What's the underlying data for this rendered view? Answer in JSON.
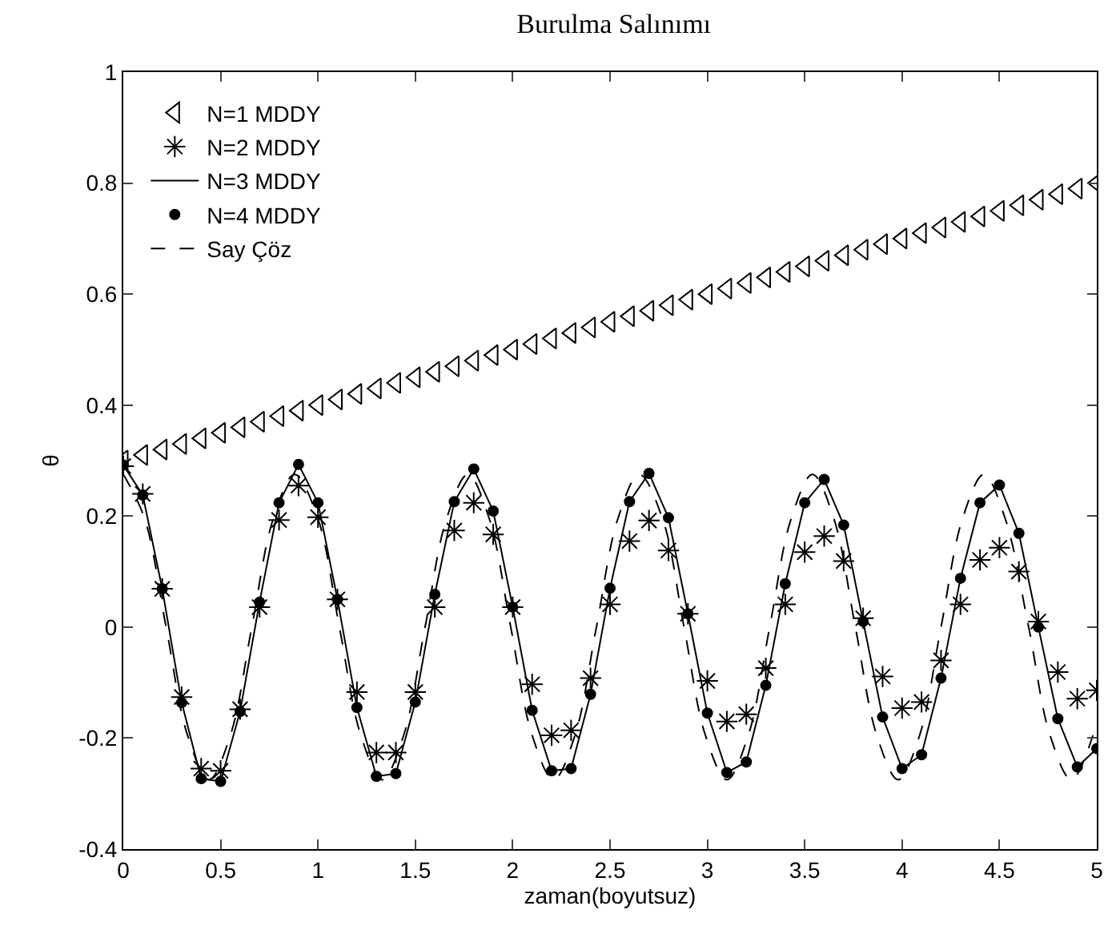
{
  "chart_data": {
    "type": "line",
    "title": "Burulma Salınımı",
    "xlabel": "zaman(boyutsuz)",
    "ylabel": "θ",
    "x": [
      0,
      0.1,
      0.2,
      0.3,
      0.4,
      0.5,
      0.6,
      0.7,
      0.8,
      0.9,
      1,
      1.1,
      1.2,
      1.3,
      1.4,
      1.5,
      1.6,
      1.7,
      1.8,
      1.9,
      2,
      2.1,
      2.2,
      2.3,
      2.4,
      2.5,
      2.6,
      2.7,
      2.8,
      2.9,
      3,
      3.1,
      3.2,
      3.3,
      3.4,
      3.5,
      3.6,
      3.7,
      3.8,
      3.9,
      4,
      4.1,
      4.2,
      4.3,
      4.4,
      4.5,
      4.6,
      4.7,
      4.8,
      4.9,
      5
    ],
    "series": [
      {
        "name": "N=1 MDDY",
        "type": "scatter",
        "marker": "triangle",
        "color": "#000000",
        "values": [
          0.3,
          0.31,
          0.32,
          0.33,
          0.34,
          0.35,
          0.36,
          0.37,
          0.38,
          0.39,
          0.4,
          0.41,
          0.42,
          0.43,
          0.44,
          0.45,
          0.46,
          0.47,
          0.48,
          0.49,
          0.5,
          0.51,
          0.52,
          0.53,
          0.54,
          0.55,
          0.56,
          0.57,
          0.58,
          0.59,
          0.6,
          0.61,
          0.62,
          0.63,
          0.64,
          0.65,
          0.66,
          0.67,
          0.68,
          0.69,
          0.7,
          0.71,
          0.72,
          0.73,
          0.74,
          0.75,
          0.76,
          0.77,
          0.78,
          0.79,
          0.8
        ]
      },
      {
        "name": "N=2 MDDY",
        "type": "scatter",
        "marker": "cross",
        "color": "#000000",
        "values": [
          0.29,
          0.24,
          0.069,
          -0.126,
          -0.255,
          -0.259,
          -0.148,
          0.036,
          0.193,
          0.255,
          0.198,
          0.05,
          -0.117,
          -0.226,
          -0.226,
          -0.117,
          0.036,
          0.174,
          0.224,
          0.167,
          0.036,
          -0.103,
          -0.195,
          -0.186,
          -0.092,
          0.041,
          0.155,
          0.192,
          0.138,
          0.024,
          -0.097,
          -0.17,
          -0.157,
          -0.074,
          0.041,
          0.135,
          0.164,
          0.119,
          0.016,
          -0.089,
          -0.146,
          -0.135,
          -0.06,
          0.041,
          0.121,
          0.143,
          0.1,
          0.01,
          -0.081,
          -0.129,
          -0.114
        ]
      },
      {
        "name": "N=3 MDDY",
        "type": "line",
        "marker": "none",
        "line_style": "solid",
        "color": "#000000",
        "values": [
          0.292,
          0.238,
          0.069,
          -0.136,
          -0.273,
          -0.278,
          -0.152,
          0.045,
          0.224,
          0.293,
          0.224,
          0.05,
          -0.145,
          -0.269,
          -0.264,
          -0.135,
          0.059,
          0.226,
          0.285,
          0.209,
          0.036,
          -0.15,
          -0.259,
          -0.255,
          -0.121,
          0.07,
          0.226,
          0.277,
          0.197,
          0.024,
          -0.155,
          -0.262,
          -0.243,
          -0.105,
          0.078,
          0.224,
          0.266,
          0.184,
          0.01,
          -0.162,
          -0.255,
          -0.23,
          -0.092,
          0.088,
          0.224,
          0.256,
          0.169,
          0,
          -0.165,
          -0.252,
          -0.219
        ]
      },
      {
        "name": "N=4 MDDY",
        "type": "scatter",
        "marker": "circle",
        "color": "#000000",
        "values": [
          0.292,
          0.238,
          0.069,
          -0.136,
          -0.273,
          -0.278,
          -0.152,
          0.045,
          0.224,
          0.293,
          0.224,
          0.05,
          -0.145,
          -0.269,
          -0.264,
          -0.135,
          0.059,
          0.226,
          0.285,
          0.209,
          0.036,
          -0.15,
          -0.259,
          -0.255,
          -0.121,
          0.07,
          0.226,
          0.277,
          0.197,
          0.024,
          -0.155,
          -0.262,
          -0.243,
          -0.105,
          0.078,
          0.224,
          0.266,
          0.184,
          0.01,
          -0.162,
          -0.255,
          -0.23,
          -0.092,
          0.088,
          0.224,
          0.256,
          0.169,
          0,
          -0.165,
          -0.252,
          -0.219
        ]
      },
      {
        "name": "Say Çöz",
        "type": "line",
        "marker": "none",
        "line_style": "dashed",
        "color": "#000000",
        "x": [
          0,
          0.11,
          0.22,
          0.33,
          0.44,
          0.55,
          0.66,
          0.77,
          0.88,
          1.0,
          1.11,
          1.22,
          1.33,
          1.44,
          1.55,
          1.66,
          1.77,
          1.88,
          1.99,
          2.1,
          2.21,
          2.32,
          2.43,
          2.54,
          2.65,
          2.77,
          2.88,
          2.99,
          3.1,
          3.21,
          3.32,
          3.43,
          3.54,
          3.65,
          3.76,
          3.87,
          3.98,
          4.09,
          4.2,
          4.31,
          4.42,
          4.53,
          4.65,
          4.76,
          4.87,
          4.98
        ],
        "values": [
          0.275,
          0.195,
          0,
          -0.195,
          -0.275,
          -0.195,
          0,
          0.195,
          0.275,
          0.195,
          0,
          -0.195,
          -0.275,
          -0.195,
          0,
          0.195,
          0.275,
          0.195,
          0,
          -0.195,
          -0.275,
          -0.195,
          0,
          0.195,
          0.275,
          0.195,
          0,
          -0.195,
          -0.275,
          -0.195,
          0,
          0.195,
          0.275,
          0.195,
          0,
          -0.195,
          -0.275,
          -0.195,
          0,
          0.195,
          0.275,
          0.195,
          0,
          -0.195,
          -0.275,
          -0.195
        ]
      }
    ],
    "xlim": [
      0,
      5
    ],
    "xticks": [
      0,
      0.5,
      1,
      1.5,
      2,
      2.5,
      3,
      3.5,
      4,
      4.5,
      5
    ],
    "ylim": [
      -0.4,
      1
    ],
    "yticks": [
      -0.4,
      -0.2,
      0,
      0.2,
      0.4,
      0.6,
      0.8,
      1
    ],
    "grid": false,
    "legend": "top left"
  }
}
